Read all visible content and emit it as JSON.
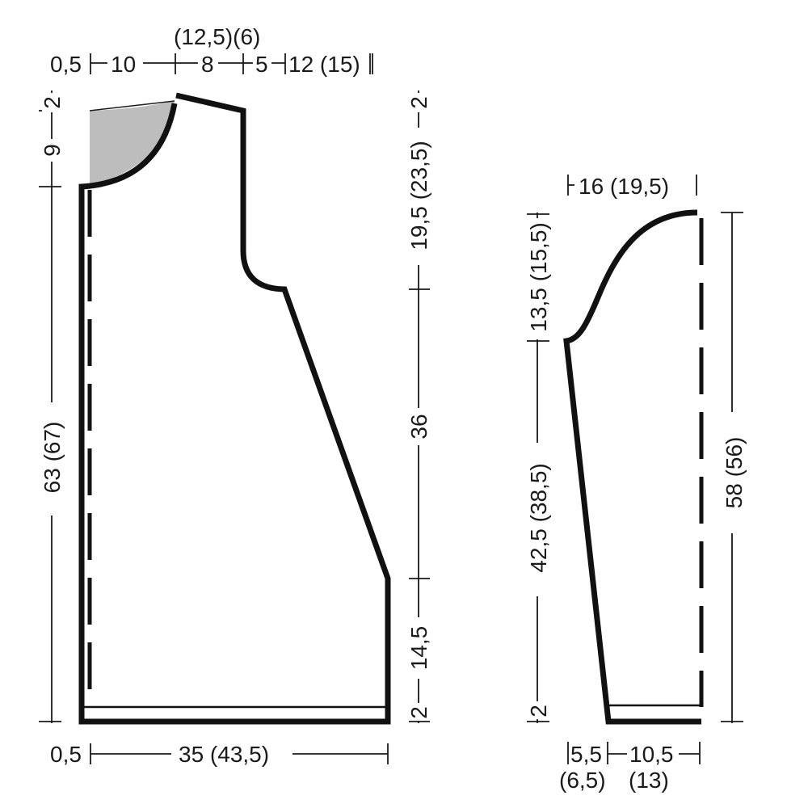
{
  "colors": {
    "outline": "#111111",
    "dimension": "#1a1a1a",
    "neck_fill": "#bdbdbd",
    "background": "#ffffff"
  },
  "body_piece": {
    "top": {
      "upper_label": "(12,5)(6)",
      "edge": "0,5",
      "neck": "10",
      "shoulder": "8",
      "arm_step": "5",
      "arm": "12 (15)"
    },
    "left": {
      "neck_step": "2",
      "neck_depth": "9",
      "total_length": "63 (67)"
    },
    "right": {
      "shoulder_step": "2",
      "armhole": "19,5 (23,5)",
      "side_slope": "36",
      "side_straight": "14,5",
      "hem": "2"
    },
    "bottom": {
      "edge": "0,5",
      "width": "35 (43,5)"
    }
  },
  "sleeve_piece": {
    "top": {
      "cap_width": "16 (19,5)"
    },
    "left": {
      "cap_height": "13,5 (15,5)",
      "sleeve_length": "42,5 (38,5)",
      "hem": "2"
    },
    "right": {
      "total_length": "58 (56)"
    },
    "bottom": {
      "cuff_left": "5,5",
      "cuff_left_alt": "(6,5)",
      "cuff_right": "10,5",
      "cuff_right_alt": "(13)"
    }
  }
}
